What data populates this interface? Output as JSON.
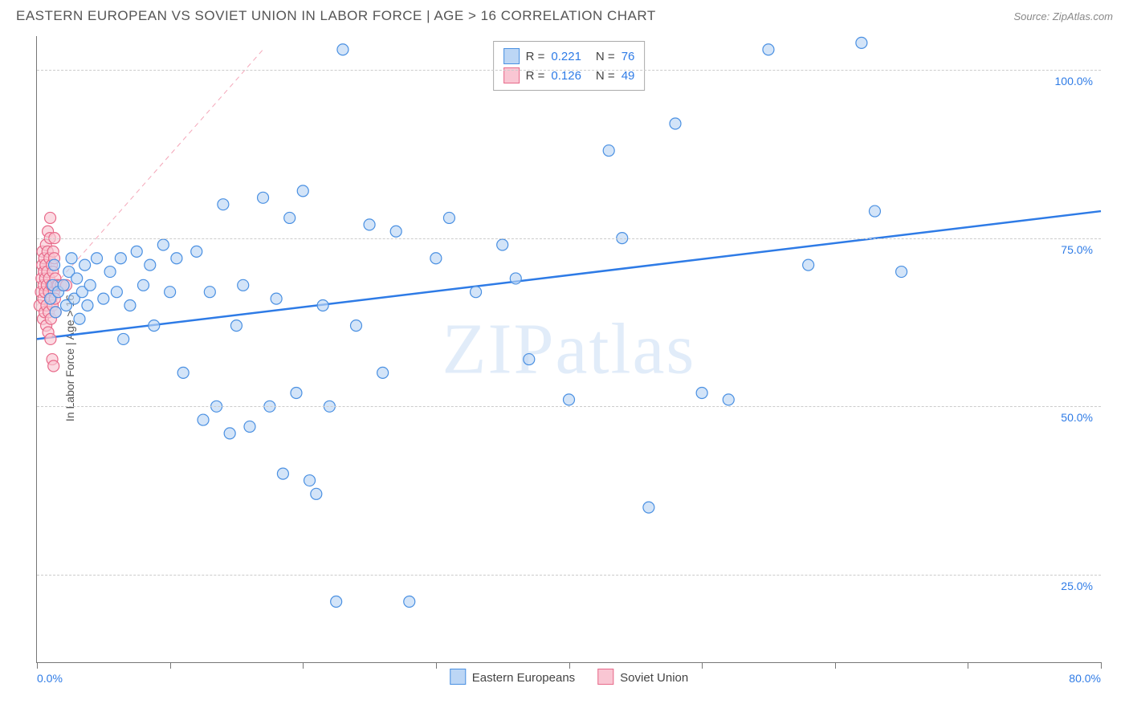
{
  "header": {
    "title": "EASTERN EUROPEAN VS SOVIET UNION IN LABOR FORCE | AGE > 16 CORRELATION CHART",
    "source": "Source: ZipAtlas.com"
  },
  "chart": {
    "type": "scatter",
    "ylabel": "In Labor Force | Age > 16",
    "xlim": [
      0,
      80
    ],
    "ylim": [
      12,
      105
    ],
    "x_tick_step": 10,
    "y_ticks": [
      25,
      50,
      75,
      100
    ],
    "y_tick_labels": [
      "25.0%",
      "50.0%",
      "75.0%",
      "100.0%"
    ],
    "x_min_label": "0.0%",
    "x_max_label": "80.0%",
    "background_color": "#ffffff",
    "grid_color": "#cccccc",
    "axis_color": "#777777",
    "tick_label_color": "#2e7be6",
    "marker_radius": 7,
    "marker_stroke_width": 1.2,
    "trend_line_width": 2.5,
    "dashed_line_width": 1,
    "watermark": "ZIPatlas",
    "watermark_color": "#e1ecf9",
    "series": {
      "blue": {
        "label": "Eastern Europeans",
        "fill": "#bcd6f5",
        "stroke": "#4a90e2",
        "fill_opacity": 0.65,
        "points": [
          [
            1.0,
            66
          ],
          [
            1.2,
            68
          ],
          [
            1.3,
            71
          ],
          [
            1.4,
            64
          ],
          [
            1.6,
            67
          ],
          [
            2.0,
            68
          ],
          [
            2.2,
            65
          ],
          [
            2.4,
            70
          ],
          [
            2.6,
            72
          ],
          [
            2.8,
            66
          ],
          [
            3.0,
            69
          ],
          [
            3.2,
            63
          ],
          [
            3.4,
            67
          ],
          [
            3.6,
            71
          ],
          [
            3.8,
            65
          ],
          [
            4.0,
            68
          ],
          [
            4.5,
            72
          ],
          [
            5.0,
            66
          ],
          [
            5.5,
            70
          ],
          [
            6.0,
            67
          ],
          [
            6.3,
            72
          ],
          [
            6.5,
            60
          ],
          [
            7.0,
            65
          ],
          [
            7.5,
            73
          ],
          [
            8.0,
            68
          ],
          [
            8.5,
            71
          ],
          [
            8.8,
            62
          ],
          [
            9.5,
            74
          ],
          [
            10.0,
            67
          ],
          [
            10.5,
            72
          ],
          [
            11.0,
            55
          ],
          [
            12.0,
            73
          ],
          [
            12.5,
            48
          ],
          [
            13.0,
            67
          ],
          [
            13.5,
            50
          ],
          [
            14.0,
            80
          ],
          [
            14.5,
            46
          ],
          [
            15.0,
            62
          ],
          [
            15.5,
            68
          ],
          [
            16.0,
            47
          ],
          [
            17.0,
            81
          ],
          [
            17.5,
            50
          ],
          [
            18.0,
            66
          ],
          [
            18.5,
            40
          ],
          [
            19.0,
            78
          ],
          [
            19.5,
            52
          ],
          [
            20.0,
            82
          ],
          [
            20.5,
            39
          ],
          [
            21.0,
            37
          ],
          [
            21.5,
            65
          ],
          [
            22.0,
            50
          ],
          [
            22.5,
            21
          ],
          [
            23.0,
            103
          ],
          [
            24.0,
            62
          ],
          [
            25.0,
            77
          ],
          [
            26.0,
            55
          ],
          [
            27.0,
            76
          ],
          [
            28.0,
            21
          ],
          [
            30.0,
            72
          ],
          [
            31.0,
            78
          ],
          [
            33.0,
            67
          ],
          [
            35.0,
            74
          ],
          [
            36.0,
            69
          ],
          [
            37.0,
            57
          ],
          [
            40.0,
            51
          ],
          [
            43.0,
            88
          ],
          [
            44.0,
            75
          ],
          [
            46.0,
            35
          ],
          [
            48.0,
            92
          ],
          [
            50.0,
            52
          ],
          [
            52.0,
            51
          ],
          [
            55.0,
            103
          ],
          [
            58.0,
            71
          ],
          [
            62.0,
            104
          ],
          [
            63.0,
            79
          ],
          [
            65.0,
            70
          ]
        ],
        "trend": {
          "y_at_x0": 60,
          "y_at_xmax": 79,
          "color": "#2e7be6"
        }
      },
      "pink": {
        "label": "Soviet Union",
        "fill": "#f9c6d3",
        "stroke": "#e86a8a",
        "fill_opacity": 0.65,
        "points": [
          [
            0.2,
            65
          ],
          [
            0.3,
            67
          ],
          [
            0.35,
            69
          ],
          [
            0.4,
            71
          ],
          [
            0.42,
            73
          ],
          [
            0.45,
            63
          ],
          [
            0.48,
            66
          ],
          [
            0.5,
            68
          ],
          [
            0.52,
            70
          ],
          [
            0.55,
            72
          ],
          [
            0.58,
            64
          ],
          [
            0.6,
            67
          ],
          [
            0.62,
            69
          ],
          [
            0.65,
            71
          ],
          [
            0.68,
            74
          ],
          [
            0.7,
            62
          ],
          [
            0.72,
            65
          ],
          [
            0.75,
            68
          ],
          [
            0.78,
            70
          ],
          [
            0.8,
            73
          ],
          [
            0.82,
            76
          ],
          [
            0.85,
            61
          ],
          [
            0.88,
            64
          ],
          [
            0.9,
            67
          ],
          [
            0.92,
            69
          ],
          [
            0.95,
            72
          ],
          [
            0.98,
            75
          ],
          [
            1.0,
            78
          ],
          [
            1.02,
            60
          ],
          [
            1.05,
            63
          ],
          [
            1.08,
            66
          ],
          [
            1.1,
            68
          ],
          [
            1.12,
            71
          ],
          [
            1.15,
            57
          ],
          [
            1.18,
            65
          ],
          [
            1.2,
            70
          ],
          [
            1.22,
            73
          ],
          [
            1.25,
            56
          ],
          [
            1.28,
            67
          ],
          [
            1.3,
            72
          ],
          [
            1.32,
            75
          ],
          [
            1.35,
            66
          ],
          [
            1.38,
            69
          ],
          [
            1.4,
            64
          ],
          [
            1.5,
            68
          ],
          [
            1.6,
            68
          ],
          [
            1.8,
            68
          ],
          [
            2.0,
            68
          ],
          [
            2.2,
            68
          ]
        ],
        "trend": {
          "y_at_x0": 65,
          "y_at_xmax_x": 17,
          "y_at_xmax": 103,
          "color": "#f4a6b8",
          "dashed": true
        }
      }
    },
    "stats_box": {
      "rows": [
        {
          "swatch_fill": "#bcd6f5",
          "swatch_stroke": "#4a90e2",
          "r": "0.221",
          "n": "76"
        },
        {
          "swatch_fill": "#f9c6d3",
          "swatch_stroke": "#e86a8a",
          "r": "0.126",
          "n": "49"
        }
      ],
      "text_color": "#444444",
      "value_color": "#2e7be6"
    },
    "legend_bottom": [
      {
        "swatch_fill": "#bcd6f5",
        "swatch_stroke": "#4a90e2",
        "label": "Eastern Europeans"
      },
      {
        "swatch_fill": "#f9c6d3",
        "swatch_stroke": "#e86a8a",
        "label": "Soviet Union"
      }
    ]
  }
}
